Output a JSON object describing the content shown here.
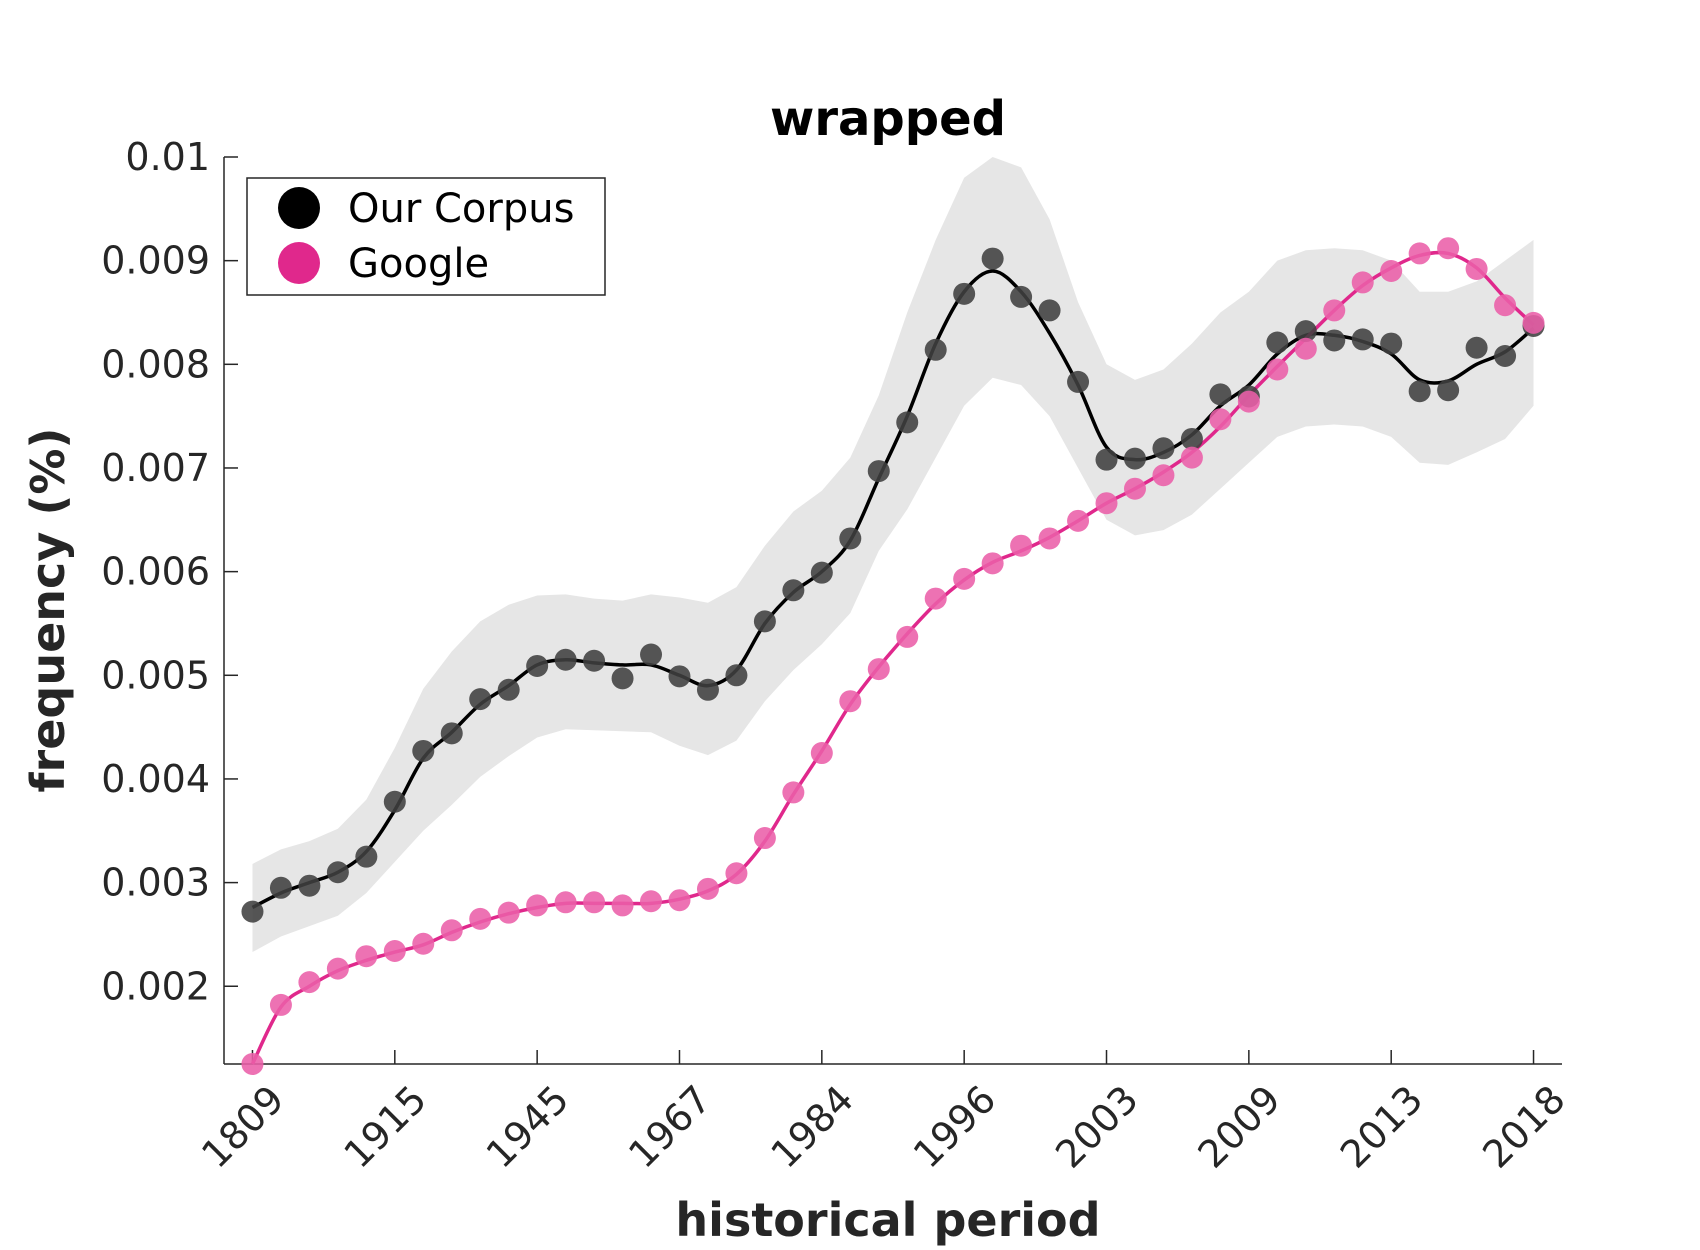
{
  "chart_data": {
    "type": "line",
    "title": "wrapped",
    "xlabel": "historical period",
    "ylabel": "frequency (%)",
    "ylim": [
      0.00125,
      0.01
    ],
    "y_ticks": [
      "0.002",
      "0.003",
      "0.004",
      "0.005",
      "0.006",
      "0.007",
      "0.008",
      "0.009",
      "0.01"
    ],
    "y_tick_values": [
      0.002,
      0.003,
      0.004,
      0.005,
      0.006,
      0.007,
      0.008,
      0.009,
      0.01
    ],
    "x_tick_labels": [
      "1809",
      "1915",
      "1945",
      "1967",
      "1984",
      "1996",
      "2003",
      "2009",
      "2013",
      "2018"
    ],
    "x_tick_positions": [
      1,
      6,
      11,
      16,
      21,
      26,
      31,
      36,
      41,
      46
    ],
    "xlim": [
      0,
      47
    ],
    "legend": {
      "position": "top-left",
      "entries": [
        "Our Corpus",
        "Google"
      ]
    },
    "colors": {
      "corpus": "#000000",
      "corpus_marker": "#404040",
      "google": "#e0288c",
      "google_marker": "#ea5fa8",
      "band": "#e6e6e6"
    },
    "series": [
      {
        "name": "Our Corpus",
        "points": [
          0.00272,
          0.00295,
          0.00297,
          0.0031,
          0.00325,
          0.00378,
          0.00427,
          0.00444,
          0.00477,
          0.00486,
          0.00509,
          0.00515,
          0.00514,
          0.00497,
          0.0052,
          0.00499,
          0.00486,
          0.005,
          0.00552,
          0.00582,
          0.00599,
          0.00632,
          0.00697,
          0.00744,
          0.00814,
          0.00868,
          0.00902,
          0.00865,
          0.00852,
          0.00783,
          0.00708,
          0.00709,
          0.00719,
          0.00728,
          0.00771,
          0.00769,
          0.00821,
          0.00832,
          0.00823,
          0.00824,
          0.0082,
          0.00774,
          0.00775,
          0.00816,
          0.00808,
          0.00837
        ],
        "smooth": [
          0.00276,
          0.0029,
          0.003,
          0.0031,
          0.0033,
          0.0037,
          0.0042,
          0.00445,
          0.00472,
          0.0049,
          0.0051,
          0.00515,
          0.00512,
          0.0051,
          0.0051,
          0.005,
          0.0049,
          0.00505,
          0.0055,
          0.0058,
          0.006,
          0.0063,
          0.0069,
          0.0075,
          0.0082,
          0.0087,
          0.0089,
          0.0087,
          0.0083,
          0.0078,
          0.0072,
          0.00708,
          0.00715,
          0.00732,
          0.0076,
          0.0078,
          0.0081,
          0.00828,
          0.00828,
          0.00822,
          0.0081,
          0.00785,
          0.00784,
          0.008,
          0.00812,
          0.00835
        ],
        "band_upper": [
          0.00318,
          0.00332,
          0.0034,
          0.00352,
          0.0038,
          0.0043,
          0.00487,
          0.00523,
          0.00552,
          0.00568,
          0.00577,
          0.00578,
          0.00574,
          0.00572,
          0.00578,
          0.00575,
          0.0057,
          0.00585,
          0.00625,
          0.00658,
          0.00678,
          0.0071,
          0.0077,
          0.0085,
          0.0092,
          0.0098,
          0.01,
          0.0099,
          0.0094,
          0.0086,
          0.008,
          0.00785,
          0.00795,
          0.0082,
          0.0085,
          0.0087,
          0.009,
          0.0091,
          0.00912,
          0.0091,
          0.009,
          0.0087,
          0.0087,
          0.0088,
          0.009,
          0.0092
        ],
        "band_lower": [
          0.00233,
          0.00248,
          0.00258,
          0.00268,
          0.0029,
          0.0032,
          0.0035,
          0.00375,
          0.00402,
          0.00422,
          0.0044,
          0.00448,
          0.00447,
          0.00446,
          0.00445,
          0.00432,
          0.00423,
          0.00437,
          0.00475,
          0.00505,
          0.0053,
          0.0056,
          0.0062,
          0.0066,
          0.0071,
          0.0076,
          0.00787,
          0.0078,
          0.0075,
          0.007,
          0.0065,
          0.00635,
          0.0064,
          0.00655,
          0.0068,
          0.00705,
          0.0073,
          0.0074,
          0.00742,
          0.0074,
          0.0073,
          0.00705,
          0.00703,
          0.00715,
          0.00728,
          0.0076
        ]
      },
      {
        "name": "Google",
        "points": [
          0.00125,
          0.00182,
          0.00204,
          0.00217,
          0.00229,
          0.00234,
          0.00241,
          0.00254,
          0.00265,
          0.00271,
          0.00278,
          0.00281,
          0.00281,
          0.00278,
          0.00282,
          0.00283,
          0.00294,
          0.00309,
          0.00343,
          0.00387,
          0.00425,
          0.00475,
          0.00506,
          0.00537,
          0.00574,
          0.00593,
          0.00608,
          0.00625,
          0.00632,
          0.00649,
          0.00666,
          0.0068,
          0.00693,
          0.0071,
          0.00747,
          0.00764,
          0.00795,
          0.00815,
          0.00852,
          0.00879,
          0.0089,
          0.00907,
          0.00912,
          0.00892,
          0.00857,
          0.0084
        ],
        "smooth": [
          0.00125,
          0.0018,
          0.002,
          0.00215,
          0.00225,
          0.00233,
          0.0024,
          0.00252,
          0.00262,
          0.0027,
          0.00276,
          0.0028,
          0.0028,
          0.0028,
          0.0028,
          0.00284,
          0.00292,
          0.00308,
          0.0034,
          0.00385,
          0.00427,
          0.00472,
          0.00508,
          0.0054,
          0.00569,
          0.00592,
          0.00609,
          0.0062,
          0.00633,
          0.00649,
          0.00666,
          0.0068,
          0.00696,
          0.00715,
          0.0074,
          0.0077,
          0.00798,
          0.00825,
          0.00852,
          0.00876,
          0.00893,
          0.00905,
          0.00907,
          0.00893,
          0.00864,
          0.00838
        ]
      }
    ]
  }
}
